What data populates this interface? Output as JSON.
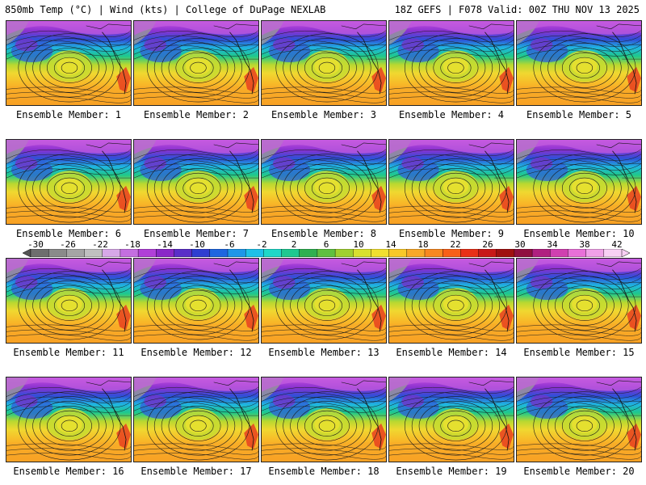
{
  "header": {
    "left": "850mb Temp (°C) | Wind (kts) | College of DuPage NEXLAB",
    "right": "18Z GEFS | F078 Valid: 00Z THU NOV 13 2025"
  },
  "members": [
    "Ensemble Member: 1",
    "Ensemble Member: 2",
    "Ensemble Member: 3",
    "Ensemble Member: 4",
    "Ensemble Member: 5",
    "Ensemble Member: 6",
    "Ensemble Member: 7",
    "Ensemble Member: 8",
    "Ensemble Member: 9",
    "Ensemble Member: 10",
    "Ensemble Member: 11",
    "Ensemble Member: 12",
    "Ensemble Member: 13",
    "Ensemble Member: 14",
    "Ensemble Member: 15",
    "Ensemble Member: 16",
    "Ensemble Member: 17",
    "Ensemble Member: 18",
    "Ensemble Member: 19",
    "Ensemble Member: 20"
  ],
  "colorbar": {
    "ticks": [
      "-30",
      "-26",
      "-22",
      "-18",
      "-14",
      "-10",
      "-6",
      "-2",
      "2",
      "6",
      "10",
      "14",
      "18",
      "22",
      "26",
      "30",
      "34",
      "38",
      "42"
    ],
    "colors": [
      "#6e6e6e",
      "#8a8a8a",
      "#a5a5a5",
      "#c0c0c0",
      "#d7a8e8",
      "#c46fe0",
      "#b040d8",
      "#8a28c8",
      "#5a2fc8",
      "#2f3fd0",
      "#1f66e0",
      "#1f96e8",
      "#1fc0e8",
      "#1fd8c8",
      "#1fc890",
      "#2fb050",
      "#5fc040",
      "#a0d030",
      "#d8e030",
      "#f0e030",
      "#f8c828",
      "#f8a828",
      "#f88820",
      "#f86018",
      "#e83018",
      "#c81818",
      "#a01010",
      "#901040",
      "#b02080",
      "#d040b0",
      "#e870d8",
      "#f0a0e8",
      "#f8d0f4"
    ]
  }
}
